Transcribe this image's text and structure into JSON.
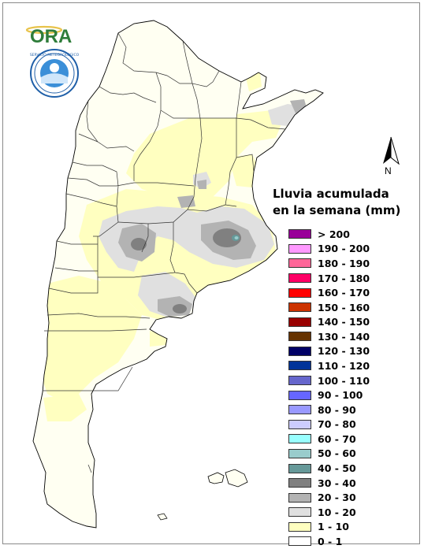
{
  "logo": {
    "text": "ORA"
  },
  "north_arrow": {
    "label": "N"
  },
  "legend": {
    "title_line1": "Lluvia acumulada",
    "title_line2": "en la semana (mm)",
    "items": [
      {
        "label": "> 200",
        "color": "#990099"
      },
      {
        "label": "190 - 200",
        "color": "#ff99ff"
      },
      {
        "label": "180 - 190",
        "color": "#ff6699"
      },
      {
        "label": "170 - 180",
        "color": "#ff0066"
      },
      {
        "label": "160 - 170",
        "color": "#ff0000"
      },
      {
        "label": "150 - 160",
        "color": "#cc3300"
      },
      {
        "label": "140 - 150",
        "color": "#990000"
      },
      {
        "label": "130 - 140",
        "color": "#663300"
      },
      {
        "label": "120 - 130",
        "color": "#000066"
      },
      {
        "label": "110 - 120",
        "color": "#003399"
      },
      {
        "label": "100 - 110",
        "color": "#6666cc"
      },
      {
        "label": "90 - 100",
        "color": "#6666ff"
      },
      {
        "label": "80 - 90",
        "color": "#9999ff"
      },
      {
        "label": "70 - 80",
        "color": "#ccccff"
      },
      {
        "label": "60 - 70",
        "color": "#99ffff"
      },
      {
        "label": "50 - 60",
        "color": "#99cccc"
      },
      {
        "label": "40 - 50",
        "color": "#669999"
      },
      {
        "label": "30 - 40",
        "color": "#808080"
      },
      {
        "label": "20 - 30",
        "color": "#b3b3b3"
      },
      {
        "label": "10 - 20",
        "color": "#e0e0e0"
      },
      {
        "label": "1 - 10",
        "color": "#ffffc0"
      },
      {
        "label": "0 - 1",
        "color": "#ffffff"
      }
    ]
  }
}
